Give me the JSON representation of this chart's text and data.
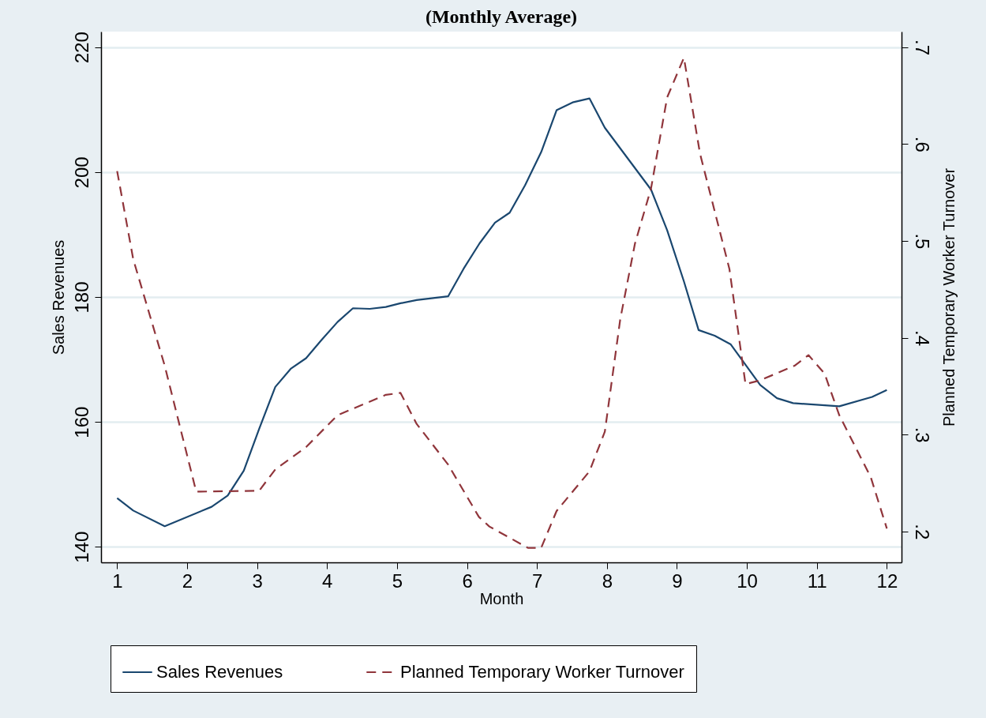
{
  "chart_data": {
    "type": "line",
    "title": "(Monthly Average)",
    "xlabel": "Month",
    "ylabel": "Sales Revenues",
    "y2label": "Planned Temporary Worker Turnover",
    "xlim": [
      0.77,
      12.21
    ],
    "xticks": [
      1,
      2,
      3,
      4,
      5,
      6,
      7,
      8,
      9,
      10,
      11,
      12
    ],
    "ylim": [
      137.5,
      222.5
    ],
    "yticks": [
      140,
      160,
      180,
      200,
      220
    ],
    "y2lim": [
      0.168,
      0.716
    ],
    "y2ticks": [
      {
        "value": 0.2,
        "label": ".2"
      },
      {
        "value": 0.3,
        "label": ".3"
      },
      {
        "value": 0.4,
        "label": ".4"
      },
      {
        "value": 0.5,
        "label": ".5"
      },
      {
        "value": 0.6,
        "label": ".6"
      },
      {
        "value": 0.7,
        "label": ".7"
      }
    ],
    "grid": "y",
    "legend": "bottom",
    "series": [
      {
        "name": "Sales Revenues",
        "color": "#1a476f",
        "line_style": "solid",
        "x": [
          1,
          1.23,
          1.68,
          2.35,
          2.58,
          2.81,
          3.03,
          3.26,
          3.48,
          3.7,
          3.92,
          4.15,
          4.37,
          4.61,
          4.84,
          5.05,
          5.28,
          5.73,
          5.95,
          6.18,
          6.4,
          6.61,
          6.83,
          7.06,
          7.28,
          7.52,
          7.75,
          7.97,
          8.63,
          8.86,
          9.1,
          9.31,
          9.54,
          9.77,
          10.19,
          10.43,
          10.66,
          11.32,
          11.79,
          12
        ],
        "values": [
          147.8,
          145.8,
          143.3,
          146.4,
          148.2,
          152.2,
          158.9,
          165.6,
          168.5,
          170.2,
          173.1,
          176,
          178.2,
          178.1,
          178.4,
          179,
          179.5,
          180.1,
          184.5,
          188.6,
          191.9,
          193.5,
          197.9,
          203.2,
          209.9,
          211.2,
          211.8,
          207.1,
          197.2,
          190.7,
          182.5,
          174.7,
          173.8,
          172.4,
          165.9,
          163.8,
          163,
          162.5,
          164,
          165.1
        ]
      },
      {
        "name": "Planned Temporary Worker Turnover",
        "color": "#90353b",
        "line_style": "dashed",
        "axis": "y2",
        "x": [
          1,
          1.23,
          1.68,
          2.13,
          3.03,
          3.26,
          3.7,
          4.15,
          4.84,
          5.05,
          5.28,
          5.73,
          6.17,
          6.32,
          6.87,
          7.06,
          7.28,
          7.75,
          7.97,
          8.19,
          8.4,
          8.63,
          8.86,
          9.1,
          9.33,
          9.75,
          9.98,
          10.19,
          10.68,
          10.88,
          11.11,
          11.32,
          11.77,
          12
        ],
        "values": [
          0.572,
          0.481,
          0.371,
          0.241,
          0.242,
          0.264,
          0.287,
          0.32,
          0.341,
          0.343,
          0.311,
          0.269,
          0.215,
          0.205,
          0.183,
          0.183,
          0.221,
          0.262,
          0.303,
          0.419,
          0.497,
          0.554,
          0.648,
          0.689,
          0.59,
          0.471,
          0.352,
          0.356,
          0.371,
          0.382,
          0.363,
          0.32,
          0.256,
          0.203
        ]
      }
    ]
  }
}
